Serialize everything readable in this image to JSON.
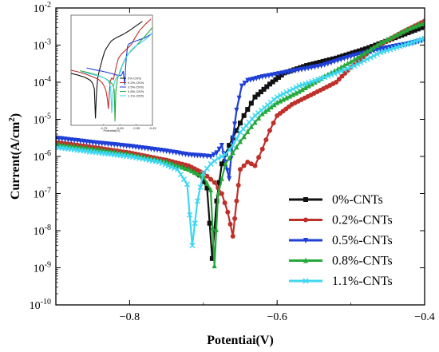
{
  "chart_data": {
    "type": "line",
    "xlabel": "Potentiai(V)",
    "ylabel": "Current(A/cm",
    "ylabel_sup": "2",
    "ylabel_end": ")",
    "xlim": [
      -0.9,
      -0.4
    ],
    "ylim_log10": [
      -10,
      -2
    ],
    "x_ticks": [
      {
        "value": -0.8,
        "label": "−0.8"
      },
      {
        "value": -0.6,
        "label": "−0.6"
      },
      {
        "value": -0.4,
        "label": "−0.4"
      }
    ],
    "y_ticks": [
      {
        "exp": -2,
        "label": "10"
      },
      {
        "exp": -3,
        "label": "10"
      },
      {
        "exp": -4,
        "label": "10"
      },
      {
        "exp": -5,
        "label": "10"
      },
      {
        "exp": -6,
        "label": "10"
      },
      {
        "exp": -7,
        "label": "10"
      },
      {
        "exp": -8,
        "label": "10"
      },
      {
        "exp": -9,
        "label": "10"
      },
      {
        "exp": -10,
        "label": "10"
      }
    ],
    "y_tick_sups": [
      "-2",
      "-3",
      "-4",
      "-5",
      "-6",
      "-7",
      "-8",
      "-9",
      "-10"
    ],
    "legend_position": "bottom-right",
    "series": [
      {
        "name": "0%-CNTs",
        "color": "#111111",
        "marker": "square",
        "ecorr": -0.688,
        "points": [
          [
            -0.9,
            -5.72
          ],
          [
            -0.85,
            -5.82
          ],
          [
            -0.8,
            -5.95
          ],
          [
            -0.75,
            -6.12
          ],
          [
            -0.72,
            -6.3
          ],
          [
            -0.705,
            -6.5
          ],
          [
            -0.695,
            -6.85
          ],
          [
            -0.688,
            -8.75
          ],
          [
            -0.682,
            -7.2
          ],
          [
            -0.675,
            -6.2
          ],
          [
            -0.665,
            -5.7
          ],
          [
            -0.655,
            -5.3
          ],
          [
            -0.645,
            -4.9
          ],
          [
            -0.63,
            -4.4
          ],
          [
            -0.61,
            -4.05
          ],
          [
            -0.59,
            -3.75
          ],
          [
            -0.56,
            -3.55
          ],
          [
            -0.52,
            -3.35
          ],
          [
            -0.48,
            -3.1
          ],
          [
            -0.44,
            -2.8
          ],
          [
            -0.4,
            -2.5
          ]
        ]
      },
      {
        "name": "0.2%-CNTs",
        "color": "#c0302a",
        "marker": "circle",
        "ecorr": -0.66,
        "points": [
          [
            -0.9,
            -5.62
          ],
          [
            -0.85,
            -5.75
          ],
          [
            -0.8,
            -5.9
          ],
          [
            -0.75,
            -6.1
          ],
          [
            -0.72,
            -6.25
          ],
          [
            -0.7,
            -6.45
          ],
          [
            -0.685,
            -6.7
          ],
          [
            -0.675,
            -7.0
          ],
          [
            -0.667,
            -7.5
          ],
          [
            -0.66,
            -8.15
          ],
          [
            -0.655,
            -7.2
          ],
          [
            -0.65,
            -6.35
          ],
          [
            -0.64,
            -6.15
          ],
          [
            -0.63,
            -6.25
          ],
          [
            -0.62,
            -5.8
          ],
          [
            -0.61,
            -5.3
          ],
          [
            -0.6,
            -4.9
          ],
          [
            -0.58,
            -4.6
          ],
          [
            -0.55,
            -4.3
          ],
          [
            -0.52,
            -4.0
          ],
          [
            -0.5,
            -3.6
          ],
          [
            -0.47,
            -3.1
          ],
          [
            -0.43,
            -2.65
          ],
          [
            -0.4,
            -2.35
          ]
        ]
      },
      {
        "name": "0.5%-CNTs",
        "color": "#1f3fd6",
        "marker": "triangle-down",
        "ecorr": -0.665,
        "points": [
          [
            -0.9,
            -5.5
          ],
          [
            -0.85,
            -5.62
          ],
          [
            -0.8,
            -5.72
          ],
          [
            -0.75,
            -5.85
          ],
          [
            -0.72,
            -5.95
          ],
          [
            -0.7,
            -5.98
          ],
          [
            -0.69,
            -6.0
          ],
          [
            -0.682,
            -5.9
          ],
          [
            -0.675,
            -5.7
          ],
          [
            -0.67,
            -6.15
          ],
          [
            -0.665,
            -6.6
          ],
          [
            -0.66,
            -5.5
          ],
          [
            -0.655,
            -4.75
          ],
          [
            -0.648,
            -4.1
          ],
          [
            -0.64,
            -3.95
          ],
          [
            -0.62,
            -3.85
          ],
          [
            -0.58,
            -3.7
          ],
          [
            -0.54,
            -3.55
          ],
          [
            -0.5,
            -3.3
          ],
          [
            -0.46,
            -3.1
          ],
          [
            -0.42,
            -2.95
          ],
          [
            -0.4,
            -2.85
          ]
        ]
      },
      {
        "name": "0.8%-CNTs",
        "color": "#26a83a",
        "marker": "triangle-up",
        "ecorr": -0.685,
        "points": [
          [
            -0.9,
            -5.68
          ],
          [
            -0.85,
            -5.8
          ],
          [
            -0.8,
            -5.95
          ],
          [
            -0.75,
            -6.15
          ],
          [
            -0.72,
            -6.35
          ],
          [
            -0.7,
            -6.55
          ],
          [
            -0.69,
            -6.9
          ],
          [
            -0.685,
            -8.95
          ],
          [
            -0.68,
            -7.0
          ],
          [
            -0.67,
            -6.2
          ],
          [
            -0.66,
            -5.9
          ],
          [
            -0.65,
            -5.6
          ],
          [
            -0.635,
            -5.2
          ],
          [
            -0.62,
            -4.85
          ],
          [
            -0.6,
            -4.55
          ],
          [
            -0.57,
            -4.25
          ],
          [
            -0.54,
            -3.9
          ],
          [
            -0.5,
            -3.45
          ],
          [
            -0.46,
            -2.95
          ],
          [
            -0.42,
            -2.55
          ],
          [
            -0.4,
            -2.4
          ]
        ]
      },
      {
        "name": "1.1%-CNTs",
        "color": "#3fd6f0",
        "marker": "x",
        "ecorr": -0.715,
        "points": [
          [
            -0.9,
            -5.75
          ],
          [
            -0.85,
            -5.88
          ],
          [
            -0.8,
            -6.0
          ],
          [
            -0.76,
            -6.15
          ],
          [
            -0.735,
            -6.35
          ],
          [
            -0.722,
            -6.75
          ],
          [
            -0.715,
            -8.4
          ],
          [
            -0.708,
            -7.2
          ],
          [
            -0.7,
            -6.45
          ],
          [
            -0.69,
            -6.2
          ],
          [
            -0.68,
            -6.05
          ],
          [
            -0.67,
            -5.95
          ],
          [
            -0.66,
            -5.7
          ],
          [
            -0.65,
            -5.35
          ],
          [
            -0.63,
            -4.9
          ],
          [
            -0.6,
            -4.4
          ],
          [
            -0.57,
            -4.1
          ],
          [
            -0.54,
            -3.9
          ],
          [
            -0.5,
            -3.6
          ],
          [
            -0.46,
            -3.2
          ],
          [
            -0.42,
            -2.95
          ],
          [
            -0.4,
            -2.82
          ]
        ]
      }
    ],
    "inset": {
      "xlim": [
        -0.95,
        -0.45
      ],
      "x_ticks": [
        "-0.75",
        "-0.65",
        "-0.55",
        "-0.45"
      ],
      "ecorr_x": [
        -0.8,
        -0.72,
        -0.62,
        -0.68,
        -0.7
      ],
      "xlabel": "Potential(V)",
      "legend": [
        "0%-CNTs",
        "0.2%-CNTs",
        "0.5%-CNTs",
        "0.8%-CNTs",
        "1.1%-CNTs"
      ]
    }
  }
}
